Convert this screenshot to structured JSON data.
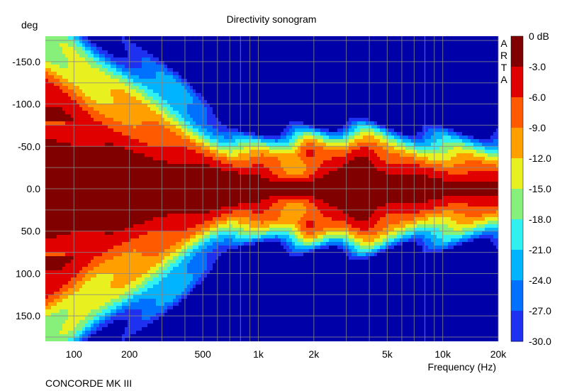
{
  "chart_data": {
    "type": "heatmap",
    "title": "Directivity sonogram",
    "ylabel": "deg",
    "xlabel": "Frequency (Hz)",
    "footer": "CONCORDE MK III",
    "watermark": "ARTA",
    "x_scale": "log",
    "xlim": [
      70,
      20000
    ],
    "ylim": [
      -180,
      180
    ],
    "y_inverted": true,
    "grid": true,
    "x_ticks": [
      {
        "value": 100,
        "label": "100"
      },
      {
        "value": 200,
        "label": "200"
      },
      {
        "value": 500,
        "label": "500"
      },
      {
        "value": 1000,
        "label": "1k"
      },
      {
        "value": 2000,
        "label": "2k"
      },
      {
        "value": 5000,
        "label": "5k"
      },
      {
        "value": 10000,
        "label": "10k"
      },
      {
        "value": 20000,
        "label": "20k"
      }
    ],
    "x_minor_grid": [
      300,
      400,
      600,
      700,
      800,
      900,
      3000,
      4000,
      6000,
      7000,
      8000,
      9000
    ],
    "y_ticks": [
      {
        "value": -150,
        "label": "-150.0"
      },
      {
        "value": -100,
        "label": "-100.0"
      },
      {
        "value": -50,
        "label": "-50.0"
      },
      {
        "value": 0,
        "label": "0.0"
      },
      {
        "value": 50,
        "label": "50.0"
      },
      {
        "value": 100,
        "label": "100.0"
      },
      {
        "value": 150,
        "label": "150.0"
      }
    ],
    "colorbar": {
      "unit": "dB",
      "levels": [
        {
          "label": "0 dB",
          "color": "#800000"
        },
        {
          "label": "-3.0",
          "color": "#e00000"
        },
        {
          "label": "-6.0",
          "color": "#ff5a00"
        },
        {
          "label": "-9.0",
          "color": "#ffa000"
        },
        {
          "label": "-12.0",
          "color": "#e8f020"
        },
        {
          "label": "-15.0",
          "color": "#86f07a"
        },
        {
          "label": "-18.0",
          "color": "#30f0f0"
        },
        {
          "label": "-21.0",
          "color": "#00b4ff"
        },
        {
          "label": "-24.0",
          "color": "#0070ff"
        },
        {
          "label": "-27.0",
          "color": "#1e30f0"
        },
        {
          "label": "-30.0",
          "color": "#0000a8"
        }
      ]
    }
  }
}
